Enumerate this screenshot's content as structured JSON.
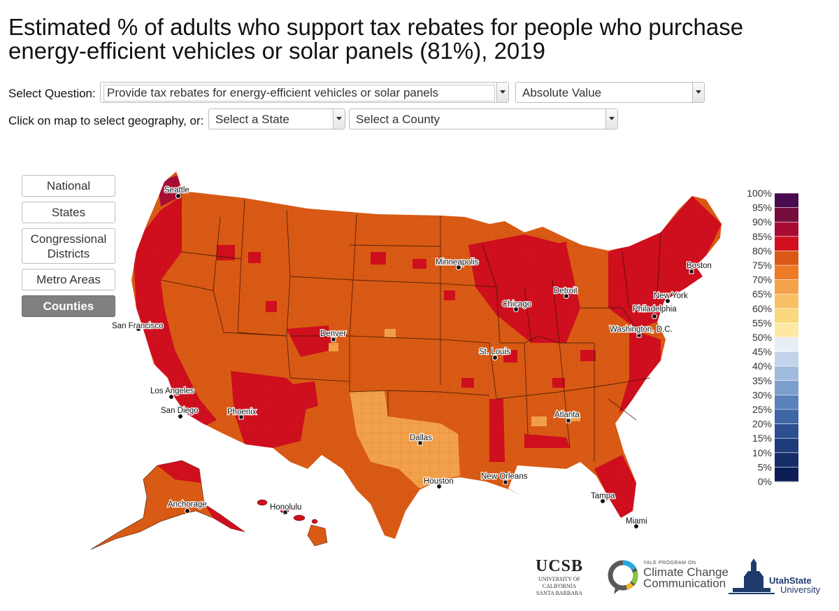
{
  "title": "Estimated % of adults who support tax rebates for people who purchase energy-efficient vehicles or solar panels (81%), 2019",
  "controls": {
    "question_label": "Select Question:",
    "question_value": "Provide tax rebates for energy-efficient vehicles or solar panels",
    "measure_value": "Absolute Value",
    "geo_label": "Click on map to select geography, or:",
    "state_value": "Select a State",
    "county_value": "Select a County"
  },
  "geography_buttons": [
    {
      "label": "National",
      "active": false
    },
    {
      "label": "States",
      "active": false
    },
    {
      "label": "Congressional Districts",
      "active": false
    },
    {
      "label": "Metro Areas",
      "active": false
    },
    {
      "label": "Counties",
      "active": true
    }
  ],
  "cities": [
    "Seattle",
    "San Francisco",
    "Los Angeles",
    "San Diego",
    "Phoenix",
    "Denver",
    "Minneapolis",
    "Chicago",
    "Detroit",
    "St. Louis",
    "Dallas",
    "Houston",
    "New Orleans",
    "Atlanta",
    "Tampa",
    "Miami",
    "Washington, D.C.",
    "Philadelphia",
    "New York",
    "Boston",
    "Anchorage",
    "Honolulu"
  ],
  "legend": {
    "ticks": [
      "100%",
      "95%",
      "90%",
      "85%",
      "80%",
      "75%",
      "70%",
      "65%",
      "60%",
      "55%",
      "50%",
      "45%",
      "40%",
      "35%",
      "30%",
      "25%",
      "20%",
      "15%",
      "10%",
      "5%",
      "0%"
    ],
    "colors": [
      "#4a0a4f",
      "#740c3c",
      "#a80c34",
      "#d20f1f",
      "#d95a14",
      "#ec7a26",
      "#f4a24c",
      "#f8c064",
      "#fbd77e",
      "#fde9a4",
      "#e8eef6",
      "#c3d4ea",
      "#9fbbdd",
      "#7b9fcc",
      "#5a82ba",
      "#3f66a5",
      "#2c4f90",
      "#1e3c7b",
      "#152d69",
      "#0c1e55"
    ]
  },
  "colors": {
    "high_support": "#cf0e1e",
    "mid_support": "#d95a14",
    "low_support": "#f3a04a",
    "button_active": "#808080"
  },
  "logos": {
    "ucsb_main": "UCSB",
    "ucsb_sub1": "UNIVERSITY OF CALIFORNIA",
    "ucsb_sub2": "SANTA BARBARA",
    "yale_small": "YALE PROGRAM ON",
    "yale_line1": "Climate Change",
    "yale_line2": "Communication",
    "usu_line1": "UtahState",
    "usu_line2": "University"
  }
}
